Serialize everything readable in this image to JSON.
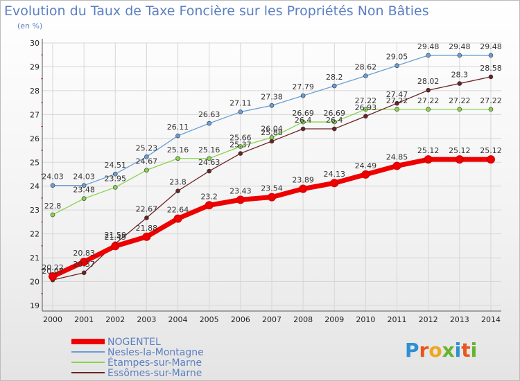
{
  "title": "Evolution du Taux de Taxe Foncière sur les Propriétés Non Bâties",
  "unit": "(en %)",
  "logo": {
    "text": "Proxiti"
  },
  "chart_data": {
    "type": "line",
    "title": "Evolution du Taux de Taxe Foncière sur les Propriétés Non Bâties",
    "ylabel": "(en %)",
    "xlabel": "",
    "ylim": [
      19,
      30
    ],
    "yticks": [
      19,
      20,
      21,
      22,
      23,
      24,
      25,
      26,
      27,
      28,
      29,
      30
    ],
    "x": [
      2000,
      2001,
      2002,
      2003,
      2004,
      2005,
      2006,
      2007,
      2008,
      2009,
      2010,
      2011,
      2012,
      2013,
      2014
    ],
    "series": [
      {
        "name": "NOGENTEL",
        "color": "#ee0000",
        "values": [
          20.22,
          20.83,
          21.49,
          21.88,
          22.64,
          23.2,
          23.43,
          23.54,
          23.89,
          24.13,
          24.49,
          24.85,
          25.12,
          25.12,
          25.12
        ]
      },
      {
        "name": "Nesles-la-Montagne",
        "color": "#6a9ed6",
        "values": [
          24.03,
          24.03,
          24.51,
          25.23,
          26.11,
          26.63,
          27.11,
          27.38,
          27.79,
          28.2,
          28.62,
          29.05,
          29.48,
          29.48,
          29.48
        ]
      },
      {
        "name": "Étampes-sur-Marne",
        "color": "#88d24c",
        "values": [
          22.8,
          23.48,
          23.95,
          24.67,
          25.16,
          25.16,
          25.66,
          26.04,
          26.69,
          26.69,
          27.22,
          27.22,
          27.22,
          27.22,
          27.22
        ]
      },
      {
        "name": "Essômes-sur-Marne",
        "color": "#6b2324",
        "values": [
          20.07,
          20.37,
          21.59,
          22.67,
          23.8,
          24.63,
          25.37,
          25.88,
          26.4,
          26.4,
          26.93,
          27.47,
          28.02,
          28.3,
          28.58
        ]
      }
    ]
  }
}
